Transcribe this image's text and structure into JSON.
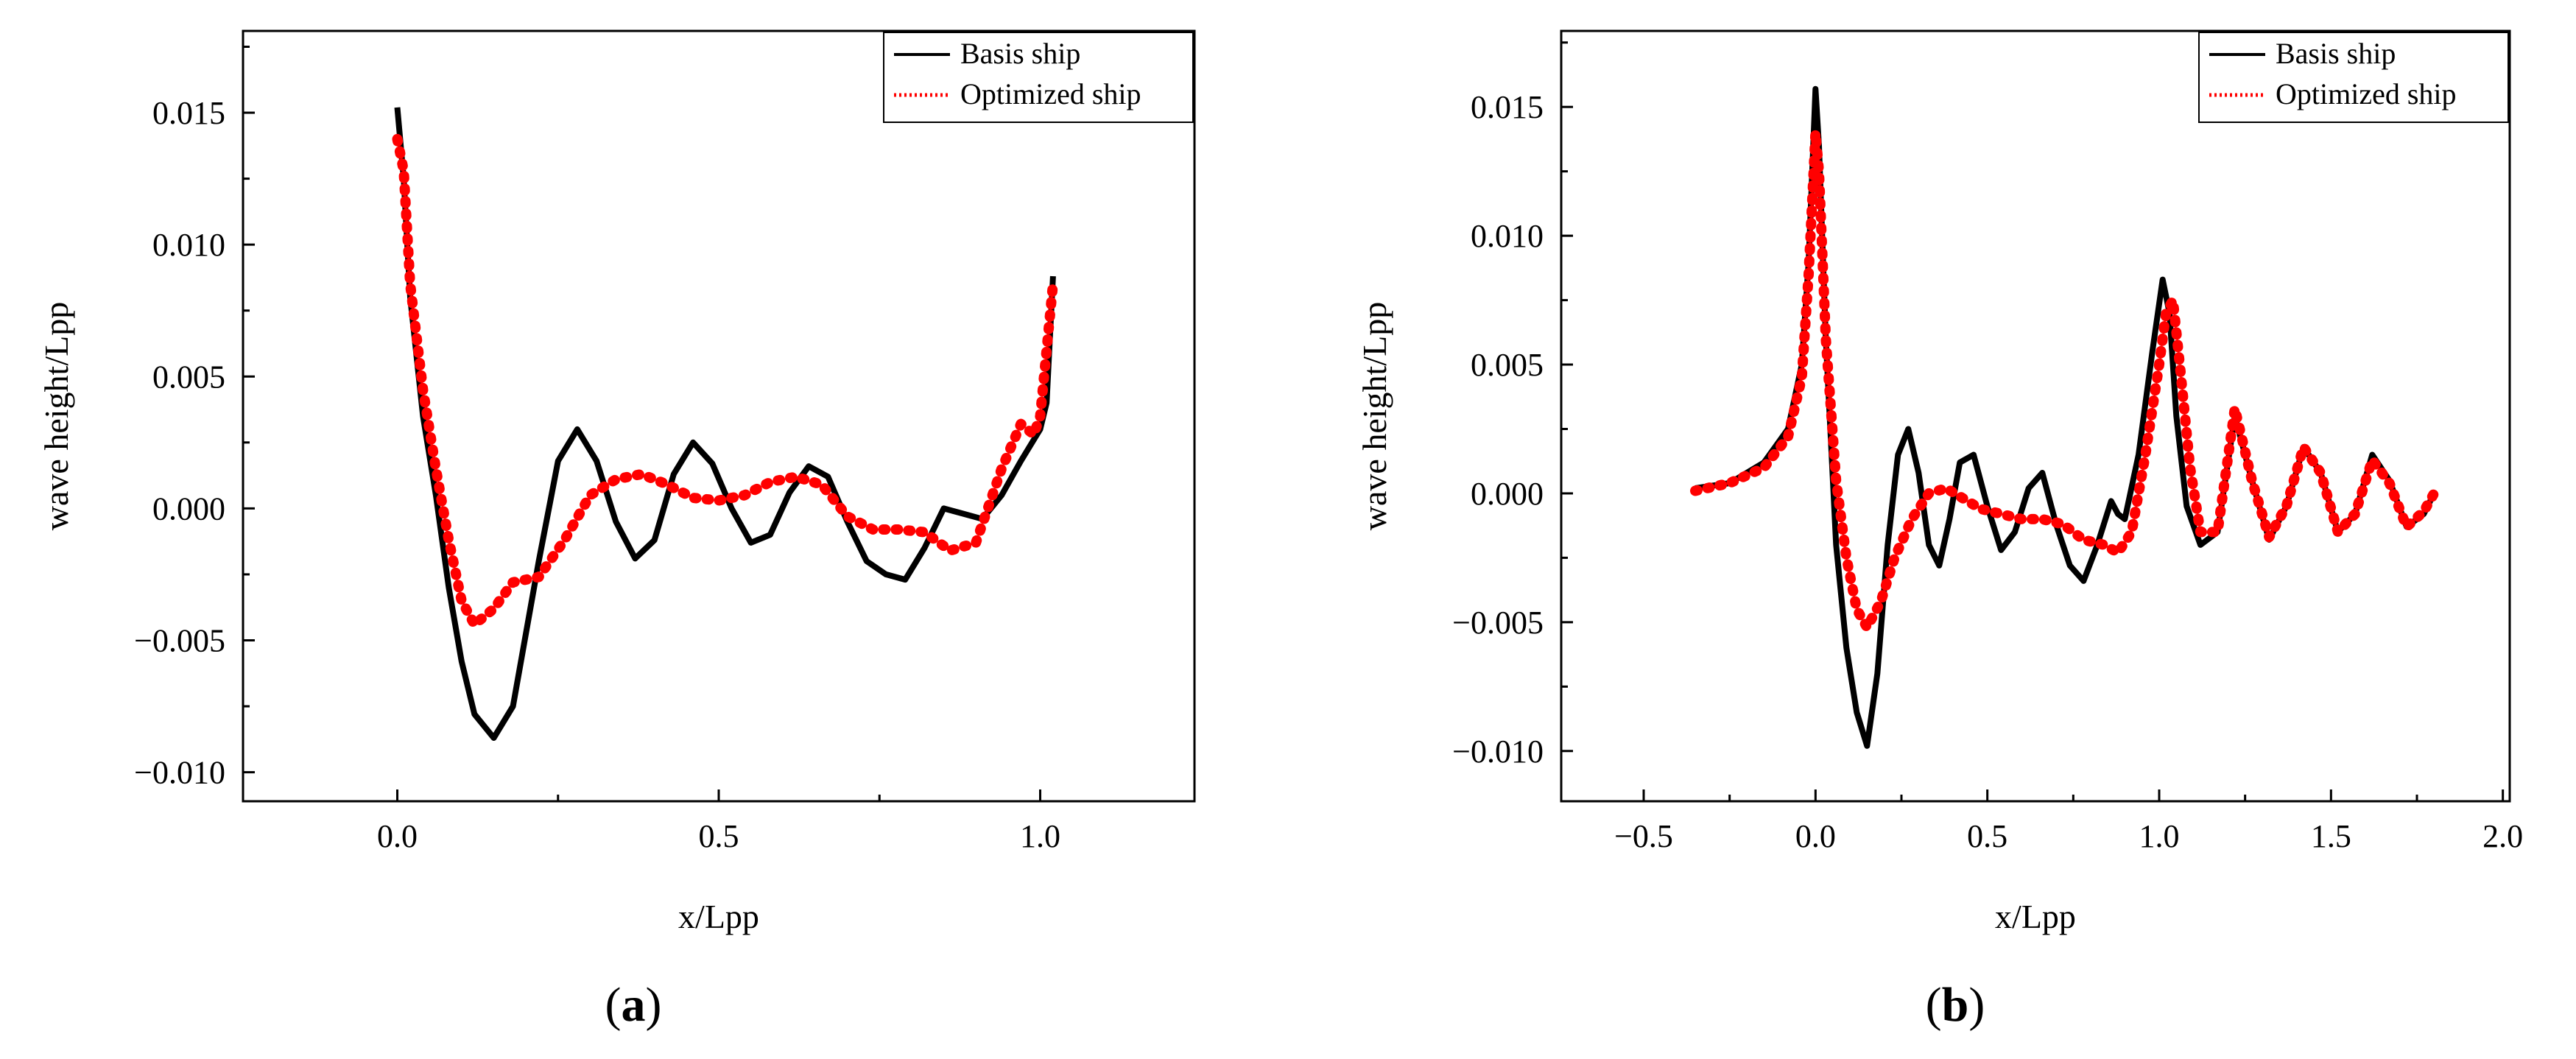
{
  "chart_data": [
    {
      "type": "line",
      "panel_label": "a",
      "xlabel": "x/Lpp",
      "ylabel": "wave height/Lpp",
      "xlim": [
        -0.24,
        1.24
      ],
      "ylim": [
        -0.0111,
        0.0181
      ],
      "xticks": [
        0.0,
        0.5,
        1.0
      ],
      "xtick_labels": [
        "0.0",
        "0.5",
        "1.0"
      ],
      "yticks": [
        -0.01,
        -0.005,
        0.0,
        0.005,
        0.01,
        0.015
      ],
      "ytick_labels": [
        "-0.010",
        "-0.005",
        "0.000",
        "0.005",
        "0.010",
        "0.015"
      ],
      "legend": "top-right",
      "grid": false,
      "series": [
        {
          "name": "Basis ship",
          "color": "#000000",
          "style": "solid",
          "x": [
            0.0,
            0.01,
            0.02,
            0.04,
            0.06,
            0.08,
            0.1,
            0.12,
            0.15,
            0.18,
            0.22,
            0.25,
            0.28,
            0.31,
            0.34,
            0.37,
            0.4,
            0.43,
            0.46,
            0.49,
            0.52,
            0.55,
            0.58,
            0.61,
            0.64,
            0.67,
            0.7,
            0.73,
            0.76,
            0.79,
            0.82,
            0.85,
            0.88,
            0.91,
            0.94,
            0.97,
            1.0,
            1.01,
            1.02
          ],
          "y": [
            0.0152,
            0.0125,
            0.008,
            0.0035,
            0.0005,
            -0.003,
            -0.0058,
            -0.0078,
            -0.0087,
            -0.0075,
            -0.002,
            0.0018,
            0.003,
            0.0018,
            -0.0005,
            -0.0019,
            -0.0012,
            0.0013,
            0.0025,
            0.0017,
            0.0,
            -0.0013,
            -0.001,
            0.0006,
            0.0016,
            0.0012,
            -0.0005,
            -0.002,
            -0.0025,
            -0.0027,
            -0.0015,
            0.0,
            -0.0002,
            -0.0004,
            0.0005,
            0.0018,
            0.003,
            0.004,
            0.0088
          ]
        },
        {
          "name": "Optimized ship",
          "color": "#ff0000",
          "style": "dotted",
          "x": [
            0.0,
            0.01,
            0.02,
            0.04,
            0.06,
            0.08,
            0.1,
            0.12,
            0.15,
            0.18,
            0.22,
            0.26,
            0.3,
            0.34,
            0.38,
            0.42,
            0.46,
            0.5,
            0.54,
            0.58,
            0.62,
            0.66,
            0.7,
            0.74,
            0.78,
            0.82,
            0.86,
            0.9,
            0.94,
            0.97,
            0.99,
            1.0,
            1.01,
            1.02
          ],
          "y": [
            0.014,
            0.0128,
            0.0085,
            0.0045,
            0.0015,
            -0.0012,
            -0.0035,
            -0.0044,
            -0.0038,
            -0.0028,
            -0.0026,
            -0.0012,
            0.0005,
            0.0011,
            0.0013,
            0.0009,
            0.0004,
            0.0003,
            0.0005,
            0.001,
            0.0012,
            0.0009,
            -0.0003,
            -0.0008,
            -0.0008,
            -0.0009,
            -0.0016,
            -0.0013,
            0.0015,
            0.0032,
            0.0028,
            0.0035,
            0.006,
            0.0085
          ]
        }
      ]
    },
    {
      "type": "line",
      "panel_label": "b",
      "xlabel": "x/Lpp",
      "ylabel": "wave height/Lpp",
      "xlim": [
        -0.74,
        2.02
      ],
      "ylim": [
        -0.01195,
        0.01795
      ],
      "xticks": [
        -0.5,
        0.0,
        0.5,
        1.0,
        1.5,
        2.0
      ],
      "xtick_labels": [
        "-0.5",
        "0.0",
        "0.5",
        "1.0",
        "1.5",
        "2.0"
      ],
      "yticks": [
        -0.01,
        -0.005,
        0.0,
        0.005,
        0.01,
        0.015
      ],
      "ytick_labels": [
        "-0.010",
        "-0.005",
        "0.000",
        "0.005",
        "0.010",
        "0.015"
      ],
      "legend": "top-right",
      "grid": false,
      "series": [
        {
          "name": "Basis ship",
          "color": "#000000",
          "style": "solid",
          "x": [
            -0.35,
            -0.25,
            -0.15,
            -0.08,
            -0.04,
            -0.02,
            0.0,
            0.01,
            0.03,
            0.06,
            0.09,
            0.12,
            0.15,
            0.18,
            0.21,
            0.24,
            0.27,
            0.3,
            0.33,
            0.36,
            0.39,
            0.42,
            0.46,
            0.5,
            0.54,
            0.58,
            0.62,
            0.66,
            0.7,
            0.74,
            0.78,
            0.82,
            0.86,
            0.88,
            0.9,
            0.94,
            0.98,
            1.01,
            1.03,
            1.05,
            1.08,
            1.12,
            1.17,
            1.22,
            1.27,
            1.32,
            1.37,
            1.42,
            1.47,
            1.52,
            1.57,
            1.62,
            1.67,
            1.72,
            1.77,
            1.8
          ],
          "y": [
            0.0002,
            0.0004,
            0.0012,
            0.0025,
            0.005,
            0.009,
            0.0157,
            0.0135,
            0.006,
            -0.002,
            -0.006,
            -0.0085,
            -0.0098,
            -0.007,
            -0.002,
            0.0015,
            0.0025,
            0.0008,
            -0.002,
            -0.0028,
            -0.001,
            0.0012,
            0.0015,
            -0.0005,
            -0.0022,
            -0.0015,
            0.0002,
            0.0008,
            -0.0012,
            -0.0028,
            -0.0034,
            -0.002,
            -0.0003,
            -0.0008,
            -0.001,
            0.0015,
            0.0055,
            0.0083,
            0.007,
            0.003,
            -0.0005,
            -0.002,
            -0.0015,
            0.003,
            0.0005,
            -0.0018,
            -0.0005,
            0.0018,
            0.0008,
            -0.0015,
            -0.0008,
            0.0015,
            0.0005,
            -0.0013,
            -0.0008,
            0.0
          ]
        },
        {
          "name": "Optimized ship",
          "color": "#ff0000",
          "style": "dotted",
          "x": [
            -0.35,
            -0.25,
            -0.15,
            -0.08,
            -0.04,
            -0.02,
            0.0,
            0.01,
            0.03,
            0.06,
            0.09,
            0.12,
            0.15,
            0.19,
            0.23,
            0.28,
            0.33,
            0.38,
            0.43,
            0.48,
            0.54,
            0.6,
            0.66,
            0.72,
            0.78,
            0.84,
            0.88,
            0.92,
            0.96,
            1.0,
            1.02,
            1.04,
            1.06,
            1.09,
            1.12,
            1.17,
            1.22,
            1.27,
            1.32,
            1.37,
            1.42,
            1.47,
            1.52,
            1.57,
            1.62,
            1.67,
            1.72,
            1.77,
            1.8
          ],
          "y": [
            0.0001,
            0.0004,
            0.001,
            0.0022,
            0.0045,
            0.0085,
            0.014,
            0.0125,
            0.006,
            0.0005,
            -0.0025,
            -0.0045,
            -0.0052,
            -0.0042,
            -0.0025,
            -0.001,
            0.0,
            0.0002,
            -0.0002,
            -0.0006,
            -0.0008,
            -0.001,
            -0.001,
            -0.0012,
            -0.0018,
            -0.002,
            -0.0023,
            -0.0015,
            0.0015,
            0.005,
            0.007,
            0.0075,
            0.005,
            0.001,
            -0.0015,
            -0.0015,
            0.0033,
            0.0005,
            -0.0017,
            -0.0005,
            0.0018,
            0.0008,
            -0.0015,
            -0.0008,
            0.0013,
            0.0004,
            -0.0013,
            -0.0007,
            0.0
          ]
        }
      ]
    }
  ]
}
